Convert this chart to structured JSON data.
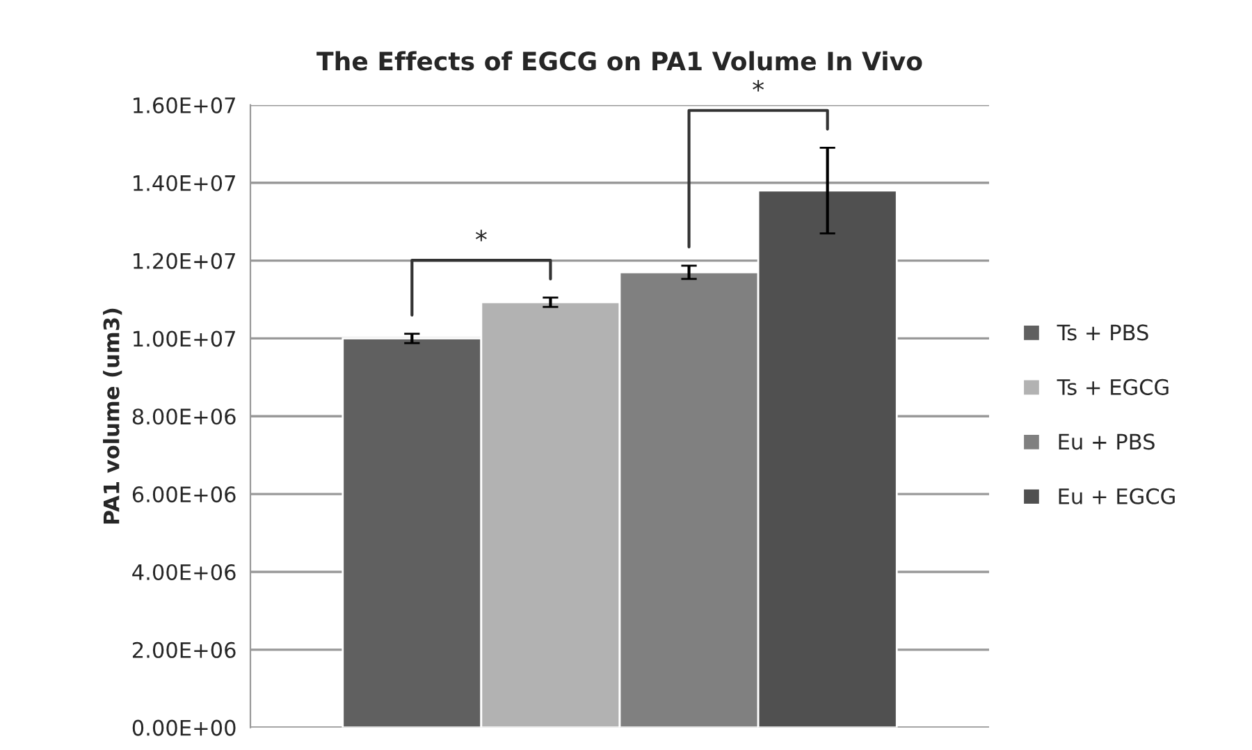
{
  "chart_data": {
    "type": "bar",
    "title": "The Effects of EGCG on PA1 Volume In Vivo",
    "ylabel": "PA1 volume (um3)",
    "categories": [
      null
    ],
    "series": [
      {
        "name": "Ts + PBS",
        "color": "#606060",
        "values": [
          10000000
        ],
        "errors": [
          120000
        ]
      },
      {
        "name": "Ts + EGCG",
        "color": "#b2b2b2",
        "values": [
          10930000
        ],
        "errors": [
          120000
        ]
      },
      {
        "name": "Eu + PBS",
        "color": "#808080",
        "values": [
          11700000
        ],
        "errors": [
          170000
        ]
      },
      {
        "name": "Eu + EGCG",
        "color": "#505050",
        "values": [
          13800000
        ],
        "errors": [
          1100000
        ]
      }
    ],
    "ylim": [
      0,
      16000000
    ],
    "yticks": [
      {
        "value": 0,
        "label": "0.00E+00"
      },
      {
        "value": 2000000,
        "label": "2.00E+06"
      },
      {
        "value": 4000000,
        "label": "4.00E+06"
      },
      {
        "value": 6000000,
        "label": "6.00E+06"
      },
      {
        "value": 8000000,
        "label": "8.00E+06"
      },
      {
        "value": 10000000,
        "label": "1.00E+07"
      },
      {
        "value": 12000000,
        "label": "1.20E+07"
      },
      {
        "value": 14000000,
        "label": "1.40E+07"
      },
      {
        "value": 16000000,
        "label": "1.60E+07"
      }
    ],
    "annotations": [
      "*",
      "*"
    ],
    "grid": "y",
    "legend": "right",
    "tick_labels": "y"
  }
}
